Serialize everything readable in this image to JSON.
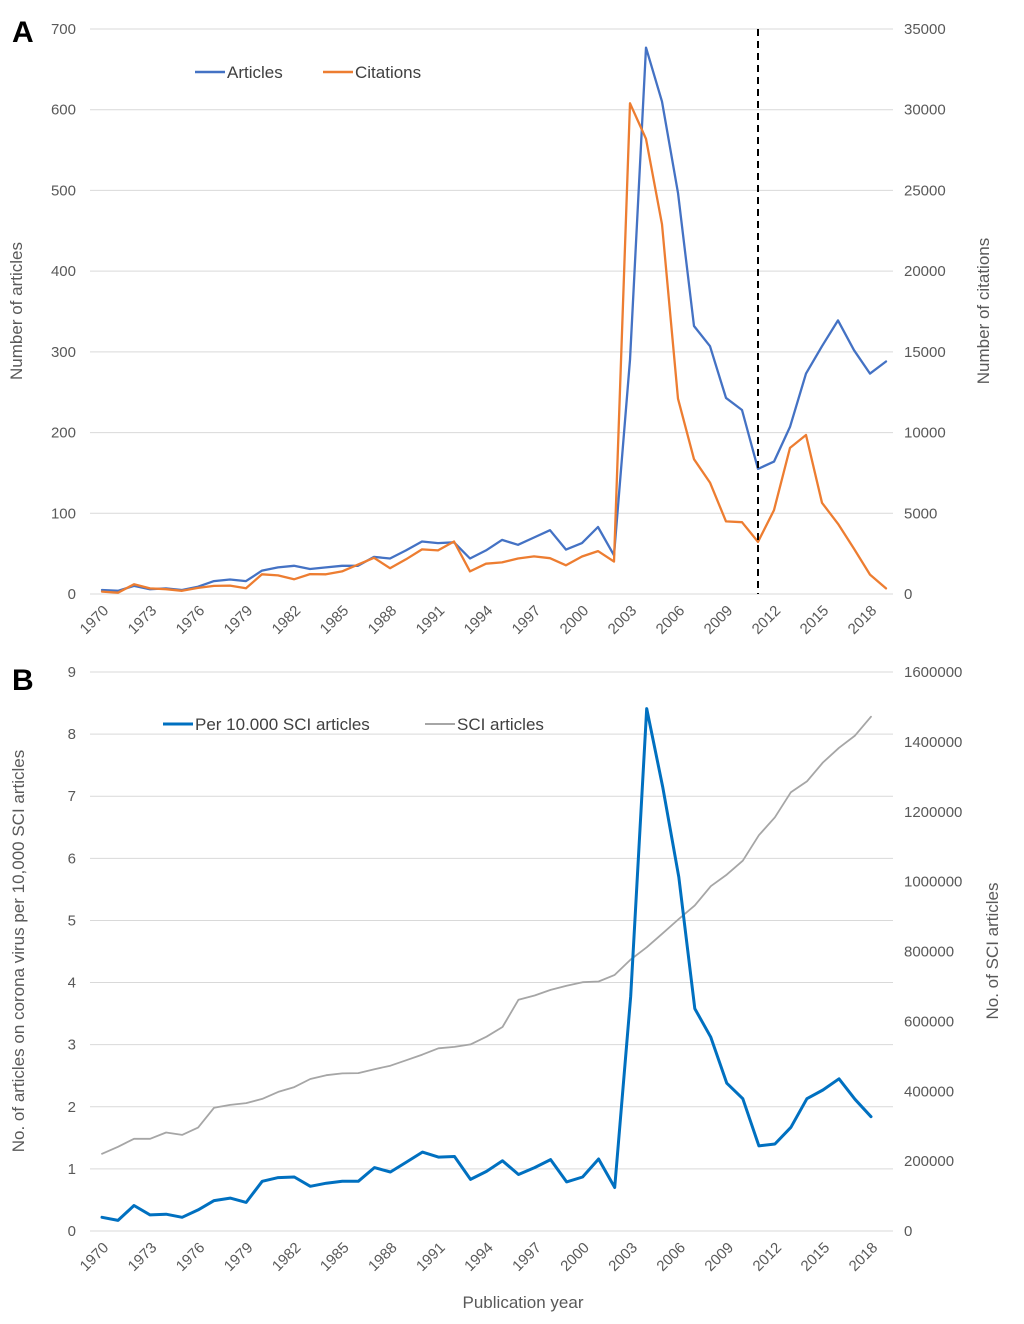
{
  "chart_data": [
    {
      "panel": "A",
      "type": "line",
      "x": [
        1970,
        1971,
        1972,
        1973,
        1974,
        1975,
        1976,
        1977,
        1978,
        1979,
        1980,
        1981,
        1982,
        1983,
        1984,
        1985,
        1986,
        1987,
        1988,
        1989,
        1990,
        1991,
        1992,
        1993,
        1994,
        1995,
        1996,
        1997,
        1998,
        1999,
        2000,
        2001,
        2002,
        2003,
        2004,
        2005,
        2006,
        2007,
        2008,
        2009,
        2010,
        2011,
        2012,
        2013,
        2014,
        2015,
        2016,
        2017,
        2018,
        2019
      ],
      "x_tick_labels": [
        "1970",
        "1973",
        "1976",
        "1979",
        "1982",
        "1985",
        "1988",
        "1991",
        "1994",
        "1997",
        "2000",
        "2003",
        "2006",
        "2009",
        "2012",
        "2015",
        "2018"
      ],
      "series": [
        {
          "name": "Articles",
          "axis": "left",
          "color": "#4472C4",
          "values": [
            5,
            4,
            10,
            6,
            7,
            5,
            9,
            16,
            18,
            16,
            29,
            33,
            35,
            31,
            33,
            35,
            35,
            46,
            44,
            54,
            65,
            63,
            64,
            44,
            54,
            67,
            61,
            70,
            79,
            55,
            63,
            83,
            48,
            290,
            677,
            610,
            497,
            332,
            307,
            243,
            228,
            155,
            164,
            207,
            273,
            307,
            339,
            302,
            273,
            288
          ]
        },
        {
          "name": "Citations",
          "axis": "right",
          "color": "#ED7D31",
          "values": [
            150,
            80,
            600,
            350,
            300,
            200,
            380,
            500,
            520,
            360,
            1220,
            1150,
            910,
            1230,
            1220,
            1400,
            1820,
            2240,
            1600,
            2150,
            2760,
            2700,
            3250,
            1400,
            1880,
            1960,
            2200,
            2330,
            2220,
            1780,
            2320,
            2660,
            2010,
            30400,
            28200,
            22900,
            12100,
            8350,
            6900,
            4500,
            4450,
            3230,
            5200,
            9050,
            9850,
            5650,
            4350,
            2800,
            1200,
            350
          ]
        }
      ],
      "ylabel_left": "Number of articles",
      "ylabel_right": "Number of citations",
      "ylim_left": [
        0,
        700
      ],
      "ylim_right": [
        0,
        35000
      ],
      "yticks_left": [
        "0",
        "100",
        "200",
        "300",
        "400",
        "500",
        "600",
        "700"
      ],
      "yticks_right": [
        "0",
        "5000",
        "10000",
        "15000",
        "20000",
        "25000",
        "30000",
        "35000"
      ],
      "vline_x": 2011,
      "legend": "top-left"
    },
    {
      "panel": "B",
      "type": "line",
      "x": [
        1970,
        1971,
        1972,
        1973,
        1974,
        1975,
        1976,
        1977,
        1978,
        1979,
        1980,
        1981,
        1982,
        1983,
        1984,
        1985,
        1986,
        1987,
        1988,
        1989,
        1990,
        1991,
        1992,
        1993,
        1994,
        1995,
        1996,
        1997,
        1998,
        1999,
        2000,
        2001,
        2002,
        2003,
        2004,
        2005,
        2006,
        2007,
        2008,
        2009,
        2010,
        2011,
        2012,
        2013,
        2014,
        2015,
        2016,
        2017,
        2018
      ],
      "x_tick_labels": [
        "1970",
        "1973",
        "1976",
        "1979",
        "1982",
        "1985",
        "1988",
        "1991",
        "1994",
        "1997",
        "2000",
        "2003",
        "2006",
        "2009",
        "2012",
        "2015",
        "2018"
      ],
      "series": [
        {
          "name": "Per 10.000 SCI articles",
          "axis": "left",
          "color": "#0070C0",
          "values": [
            0.22,
            0.17,
            0.41,
            0.26,
            0.27,
            0.22,
            0.34,
            0.49,
            0.53,
            0.46,
            0.8,
            0.86,
            0.87,
            0.72,
            0.77,
            0.8,
            0.8,
            1.02,
            0.95,
            1.11,
            1.27,
            1.19,
            1.2,
            0.83,
            0.96,
            1.13,
            0.91,
            1.02,
            1.15,
            0.79,
            0.87,
            1.16,
            0.7,
            3.78,
            8.41,
            7.15,
            5.7,
            3.58,
            3.12,
            2.38,
            2.13,
            1.37,
            1.4,
            1.67,
            2.13,
            2.27,
            2.45,
            2.12,
            1.84
          ]
        },
        {
          "name": "SCI articles",
          "axis": "right",
          "color": "#A6A6A6",
          "values": [
            221000,
            241000,
            264000,
            264000,
            282000,
            275000,
            296000,
            353000,
            361000,
            366000,
            378000,
            398000,
            412000,
            435000,
            446000,
            451000,
            452000,
            463000,
            473000,
            489000,
            505000,
            523000,
            527000,
            534000,
            556000,
            584000,
            662000,
            674000,
            690000,
            702000,
            712000,
            714000,
            733000,
            777000,
            812000,
            852000,
            893000,
            932000,
            987000,
            1020000,
            1060000,
            1133000,
            1184000,
            1256000,
            1287000,
            1341000,
            1383000,
            1418000,
            1472000
          ]
        }
      ],
      "ylabel_left": "No. of articles on corona virus per 10,000 SCI articles",
      "ylabel_right": "No. of SCI articles",
      "xlabel": "Publication year",
      "ylim_left": [
        0,
        9
      ],
      "ylim_right": [
        0,
        1600000
      ],
      "yticks_left": [
        "0",
        "1",
        "2",
        "3",
        "4",
        "5",
        "6",
        "7",
        "8",
        "9"
      ],
      "yticks_right": [
        "0",
        "200000",
        "400000",
        "600000",
        "800000",
        "1000000",
        "1200000",
        "1400000",
        "1600000"
      ],
      "legend": "top-left"
    }
  ]
}
